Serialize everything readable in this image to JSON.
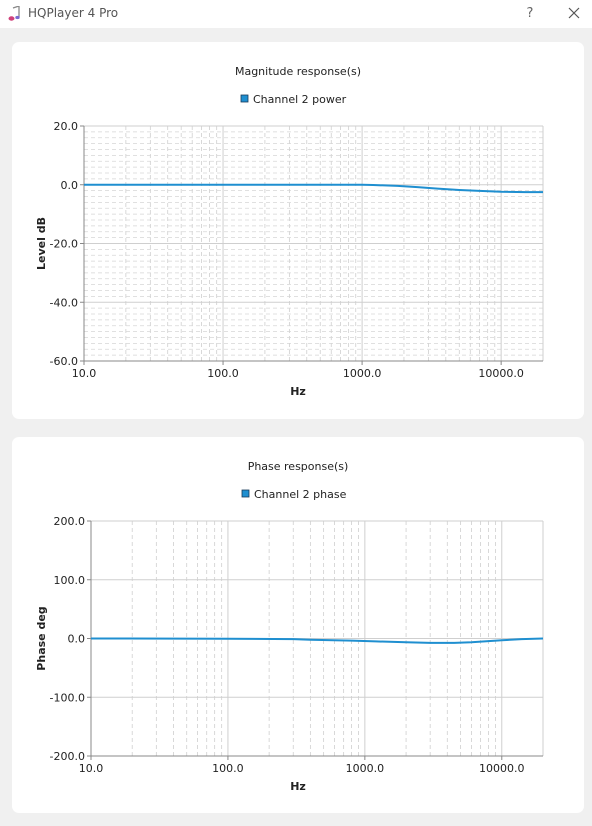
{
  "window": {
    "title": "HQPlayer 4 Pro",
    "help_label": "?",
    "app_icon": "music-note-icon",
    "close_icon": "close-icon"
  },
  "chart_data": [
    {
      "type": "line",
      "title": "Magnitude response(s)",
      "xlabel": "Hz",
      "ylabel": "Level dB",
      "xscale": "log",
      "xlim": [
        10,
        20000
      ],
      "ylim": [
        -60,
        20
      ],
      "xticks": [
        10,
        100,
        1000,
        10000
      ],
      "xtick_labels": [
        "10.0",
        "100.0",
        "1000.0",
        "10000.0"
      ],
      "yticks": [
        20,
        0,
        -20,
        -40,
        -60
      ],
      "ytick_labels": [
        "20.0",
        "0.0",
        "-20.0",
        "-40.0",
        "-60.0"
      ],
      "y_minor_step": 2,
      "grid": true,
      "legend": "top-center",
      "series": [
        {
          "name": "Channel 2 power",
          "color": "#1f8fd0",
          "x": [
            10,
            500,
            1000,
            1200,
            1800,
            2500,
            3500,
            5000,
            7000,
            10000,
            15000,
            20000
          ],
          "y": [
            0,
            0,
            0,
            -0.1,
            -0.4,
            -0.8,
            -1.3,
            -1.8,
            -2.1,
            -2.4,
            -2.5,
            -2.5
          ]
        }
      ]
    },
    {
      "type": "line",
      "title": "Phase response(s)",
      "xlabel": "Hz",
      "ylabel": "Phase deg",
      "xscale": "log",
      "xlim": [
        10,
        20000
      ],
      "ylim": [
        -200,
        200
      ],
      "xticks": [
        10,
        100,
        1000,
        10000
      ],
      "xtick_labels": [
        "10.0",
        "100.0",
        "1000.0",
        "10000.0"
      ],
      "yticks": [
        200,
        100,
        0,
        -100,
        -200
      ],
      "ytick_labels": [
        "200.0",
        "100.0",
        "0.0",
        "-100.0",
        "-200.0"
      ],
      "grid": true,
      "legend": "top-center",
      "series": [
        {
          "name": "Channel 2 phase",
          "color": "#1f8fd0",
          "x": [
            10,
            100,
            300,
            400,
            800,
            1200,
            2000,
            3000,
            4500,
            6000,
            8000,
            10000,
            14000,
            20000
          ],
          "y": [
            0,
            -0.3,
            -1,
            -2,
            -3.5,
            -5,
            -6.5,
            -7.5,
            -7.5,
            -6.5,
            -4.5,
            -3,
            -1,
            0
          ]
        }
      ]
    }
  ]
}
